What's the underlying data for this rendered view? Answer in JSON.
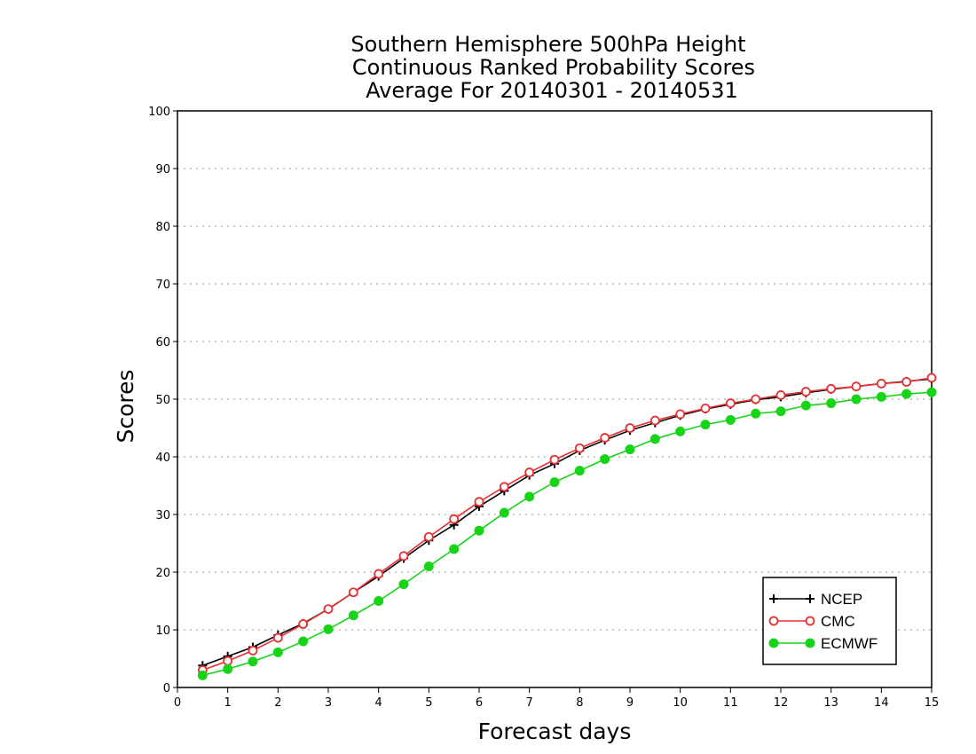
{
  "chart_data": {
    "type": "line",
    "title": [
      "Southern Hemisphere 500hPa Height",
      "Continuous Ranked Probability Scores",
      "Average For 20140301 - 20140531"
    ],
    "xlabel": "Forecast days",
    "ylabel": "Scores",
    "xlim": [
      0,
      15
    ],
    "ylim": [
      0,
      100
    ],
    "xticks": [
      "0",
      "1",
      "2",
      "3",
      "4",
      "5",
      "6",
      "7",
      "8",
      "9",
      "10",
      "11",
      "12",
      "13",
      "14",
      "15"
    ],
    "yticks": [
      "0",
      "10",
      "20",
      "30",
      "40",
      "50",
      "60",
      "70",
      "80",
      "90",
      "100"
    ],
    "grid": "horizontal-dotted",
    "legend_position": "bottom-right",
    "x": [
      0.5,
      1,
      1.5,
      2,
      2.5,
      3,
      3.5,
      4,
      4.5,
      5,
      5.5,
      6,
      6.5,
      7,
      7.5,
      8,
      8.5,
      9,
      9.5,
      10,
      10.5,
      11,
      11.5,
      12,
      12.5,
      13,
      13.5,
      14,
      14.5,
      15
    ],
    "series": [
      {
        "name": "NCEP",
        "color": "#000000",
        "marker": "plus",
        "values": [
          3.8,
          5.4,
          7.0,
          9.1,
          11.1,
          13.6,
          16.5,
          19.3,
          22.4,
          25.5,
          28.2,
          31.4,
          34.1,
          36.8,
          38.8,
          41.1,
          42.9,
          44.6,
          45.9,
          47.2,
          48.3,
          49.1,
          49.9,
          50.4,
          51.1,
          51.7,
          52.2,
          52.7,
          53.1,
          53.5
        ]
      },
      {
        "name": "CMC",
        "color": "#e83030",
        "marker": "open-circle",
        "values": [
          3.0,
          4.6,
          6.4,
          8.6,
          11.0,
          13.6,
          16.5,
          19.7,
          22.8,
          26.1,
          29.2,
          32.2,
          34.8,
          37.3,
          39.5,
          41.5,
          43.3,
          45.0,
          46.3,
          47.4,
          48.4,
          49.3,
          50.0,
          50.7,
          51.3,
          51.8,
          52.2,
          52.7,
          53.0,
          53.7
        ]
      },
      {
        "name": "ECMWF",
        "color": "#18d418",
        "marker": "filled-circle",
        "values": [
          2.1,
          3.2,
          4.5,
          6.1,
          8.0,
          10.1,
          12.5,
          15.0,
          17.9,
          21.0,
          24.0,
          27.2,
          30.3,
          33.1,
          35.6,
          37.6,
          39.6,
          41.3,
          43.1,
          44.4,
          45.6,
          46.4,
          47.5,
          47.9,
          48.9,
          49.3,
          50.0,
          50.4,
          50.9,
          51.2
        ]
      }
    ]
  }
}
